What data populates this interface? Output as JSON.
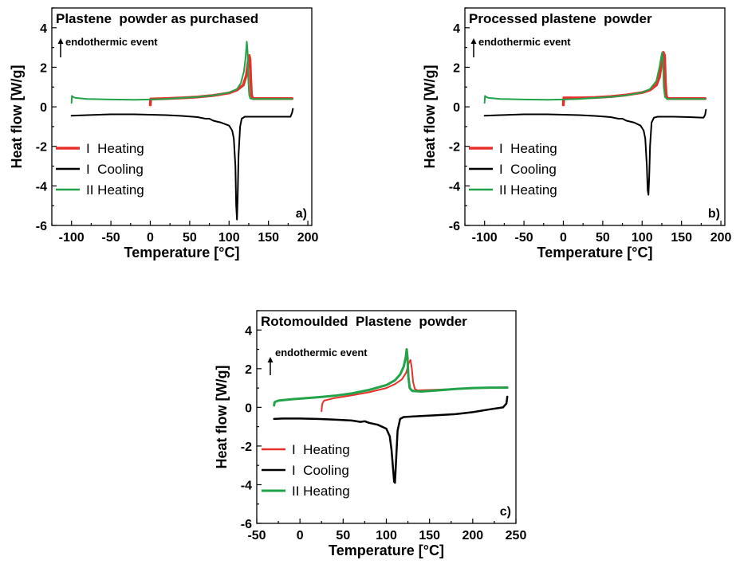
{
  "chart_data": [
    {
      "id": "a",
      "type": "line",
      "title": "Plastene  powder as purchased",
      "annotation": "endothermic event",
      "panel_label": "a)",
      "xlabel": "Temperature [°C]",
      "ylabel": "Heat flow [W/g]",
      "xlim": [
        -125,
        205
      ],
      "ylim": [
        -6,
        5
      ],
      "xticks": [
        -100,
        -50,
        0,
        50,
        100,
        150,
        200
      ],
      "yticks": [
        -6,
        -4,
        -2,
        0,
        2,
        4
      ],
      "legend_position": "bottom-left",
      "series": [
        {
          "name": "I  Heating",
          "color": "#e8302a",
          "width": 3.5,
          "x": [
            0,
            0.3,
            0.6,
            3,
            20,
            40,
            60,
            80,
            100,
            110,
            118,
            122,
            124,
            125.5,
            126.5,
            127.5,
            128.5,
            130,
            140,
            160,
            180
          ],
          "y": [
            0.1,
            0.3,
            0.4,
            0.4,
            0.42,
            0.45,
            0.5,
            0.57,
            0.7,
            0.85,
            1.1,
            1.6,
            2.2,
            2.6,
            2.4,
            1.4,
            0.6,
            0.42,
            0.42,
            0.42,
            0.42
          ]
        },
        {
          "name": "I  Cooling",
          "color": "#000000",
          "width": 2,
          "x": [
            -100,
            -80,
            -50,
            -20,
            0,
            20,
            40,
            60,
            70,
            75,
            80,
            90,
            100,
            104,
            106,
            108,
            109,
            110,
            111,
            112,
            114,
            116,
            120,
            140,
            160,
            178,
            180,
            181
          ],
          "y": [
            -0.45,
            -0.42,
            -0.38,
            -0.38,
            -0.4,
            -0.42,
            -0.46,
            -0.52,
            -0.6,
            -0.6,
            -0.7,
            -0.8,
            -0.95,
            -1.2,
            -1.6,
            -3.0,
            -5.0,
            -5.7,
            -4.5,
            -2.5,
            -1.0,
            -0.6,
            -0.5,
            -0.5,
            -0.5,
            -0.5,
            -0.3,
            -0.1
          ]
        },
        {
          "name": "II Heating",
          "color": "#22a34a",
          "width": 2,
          "x": [
            -100,
            -99.5,
            -98,
            -95,
            -80,
            -50,
            -20,
            0,
            20,
            40,
            60,
            80,
            100,
            110,
            115,
            119,
            121,
            122.5,
            123.5,
            124.5,
            125.5,
            127,
            130,
            140,
            160,
            180
          ],
          "y": [
            0.2,
            0.55,
            0.5,
            0.45,
            0.4,
            0.37,
            0.36,
            0.37,
            0.4,
            0.45,
            0.5,
            0.58,
            0.72,
            0.9,
            1.2,
            1.8,
            2.5,
            3.3,
            2.8,
            1.3,
            0.6,
            0.42,
            0.4,
            0.4,
            0.4,
            0.4
          ]
        }
      ]
    },
    {
      "id": "b",
      "type": "line",
      "title": "Processed plastene  powder",
      "annotation": "endothermic event",
      "panel_label": "b)",
      "xlabel": "Temperature [°C]",
      "ylabel": "Heat flow [W/g]",
      "xlim": [
        -125,
        205
      ],
      "ylim": [
        -6,
        5
      ],
      "xticks": [
        -100,
        -50,
        0,
        50,
        100,
        150,
        200
      ],
      "yticks": [
        -6,
        -4,
        -2,
        0,
        2,
        4
      ],
      "legend_position": "bottom-left",
      "series": [
        {
          "name": "I  Heating",
          "color": "#e8302a",
          "width": 3.5,
          "x": [
            0,
            0.3,
            0.6,
            3,
            20,
            40,
            60,
            80,
            100,
            110,
            118,
            122,
            125,
            127,
            128.5,
            129.5,
            130.5,
            132,
            140,
            160,
            180
          ],
          "y": [
            0.1,
            0.3,
            0.45,
            0.45,
            0.45,
            0.47,
            0.52,
            0.6,
            0.72,
            0.85,
            1.1,
            1.5,
            2.3,
            2.75,
            2.6,
            1.3,
            0.6,
            0.42,
            0.42,
            0.42,
            0.42
          ]
        },
        {
          "name": "I  Cooling",
          "color": "#000000",
          "width": 2,
          "x": [
            -100,
            -80,
            -50,
            -20,
            0,
            20,
            40,
            60,
            70,
            75,
            80,
            90,
            98,
            102,
            104,
            106,
            107,
            108,
            109,
            110,
            112,
            115,
            120,
            140,
            160,
            178,
            180,
            181
          ],
          "y": [
            -0.45,
            -0.42,
            -0.38,
            -0.38,
            -0.4,
            -0.42,
            -0.46,
            -0.52,
            -0.6,
            -0.6,
            -0.7,
            -0.8,
            -0.95,
            -1.2,
            -1.6,
            -3.0,
            -4.2,
            -4.45,
            -3.5,
            -2.0,
            -0.8,
            -0.55,
            -0.5,
            -0.5,
            -0.52,
            -0.55,
            -0.4,
            -0.15
          ]
        },
        {
          "name": "II Heating",
          "color": "#22a34a",
          "width": 2,
          "x": [
            -100,
            -99.5,
            -98,
            -95,
            -80,
            -50,
            -20,
            0,
            20,
            40,
            60,
            80,
            100,
            110,
            118,
            122,
            124.5,
            125.5,
            126.5,
            127.5,
            129,
            132,
            140,
            160,
            180
          ],
          "y": [
            0.2,
            0.55,
            0.5,
            0.45,
            0.4,
            0.37,
            0.36,
            0.37,
            0.4,
            0.45,
            0.5,
            0.58,
            0.72,
            0.9,
            1.3,
            2.0,
            2.6,
            2.75,
            2.2,
            1.0,
            0.5,
            0.4,
            0.4,
            0.4,
            0.4
          ]
        }
      ]
    },
    {
      "id": "c",
      "type": "line",
      "title": "Rotomoulded  Plastene  powder",
      "annotation": "endothermic event",
      "panel_label": "c)",
      "xlabel": "Temperature [°C]",
      "ylabel": "Heat flow [W/g]",
      "xlim": [
        -50,
        250
      ],
      "ylim": [
        -6,
        5
      ],
      "xticks": [
        -50,
        0,
        50,
        100,
        150,
        200,
        250
      ],
      "yticks": [
        -6,
        -4,
        -2,
        0,
        2,
        4
      ],
      "legend_position": "bottom-left",
      "series": [
        {
          "name": "I  Heating",
          "color": "#e8302a",
          "width": 2,
          "x": [
            25,
            25.3,
            26,
            28,
            40,
            60,
            80,
            100,
            110,
            118,
            123,
            126,
            128,
            129.5,
            131,
            133,
            136,
            150,
            180,
            210,
            240
          ],
          "y": [
            -0.2,
            0.0,
            0.2,
            0.35,
            0.48,
            0.62,
            0.78,
            1.0,
            1.2,
            1.45,
            1.8,
            2.3,
            2.45,
            2.0,
            1.3,
            0.95,
            0.88,
            0.9,
            0.95,
            1.0,
            1.05
          ]
        },
        {
          "name": "I  Cooling",
          "color": "#000000",
          "width": 2.5,
          "x": [
            -30,
            -20,
            0,
            20,
            40,
            60,
            70,
            75,
            80,
            90,
            100,
            104,
            106,
            108,
            109,
            110,
            111,
            113,
            116,
            120,
            140,
            160,
            180,
            200,
            220,
            235,
            239,
            240
          ],
          "y": [
            -0.6,
            -0.58,
            -0.58,
            -0.6,
            -0.63,
            -0.68,
            -0.75,
            -0.72,
            -0.8,
            -0.9,
            -1.1,
            -1.5,
            -2.2,
            -3.3,
            -3.85,
            -3.9,
            -3.0,
            -1.2,
            -0.6,
            -0.5,
            -0.45,
            -0.4,
            -0.35,
            -0.25,
            -0.1,
            0.0,
            0.2,
            0.55
          ]
        },
        {
          "name": "II Heating",
          "color": "#22a34a",
          "width": 3,
          "x": [
            -30,
            -29.5,
            -28,
            -25,
            -10,
            0,
            20,
            40,
            60,
            80,
            100,
            110,
            116,
            120,
            122.5,
            123.5,
            124.5,
            125.5,
            127,
            130,
            140,
            160,
            180,
            200,
            220,
            240
          ],
          "y": [
            0.1,
            0.25,
            0.3,
            0.35,
            0.42,
            0.45,
            0.52,
            0.6,
            0.72,
            0.9,
            1.15,
            1.4,
            1.7,
            2.1,
            2.6,
            3.0,
            2.6,
            1.6,
            1.0,
            0.85,
            0.82,
            0.88,
            0.95,
            1.0,
            1.02,
            1.02
          ]
        }
      ]
    }
  ]
}
